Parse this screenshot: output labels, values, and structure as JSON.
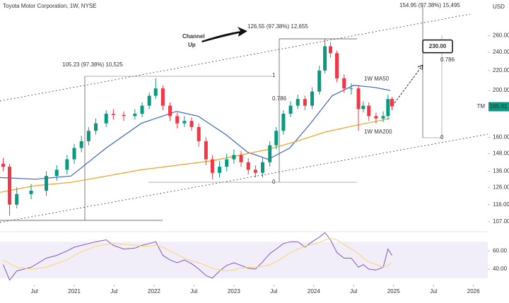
{
  "chart_data": [
    {
      "type": "candlestick",
      "title": "Toyota Motor Corporation, 1W, NYSE",
      "currency": "USD",
      "symbol": "TM",
      "last_price": 185.41,
      "log_scale": true,
      "grid": false,
      "up_color": "#089981",
      "down_color": "#f23645",
      "xlim": [
        2020.07,
        2026.18
      ],
      "xticks": [
        {
          "value": 2020.5,
          "label": "Jul"
        },
        2021,
        {
          "value": 2021.5,
          "label": "Jul"
        },
        2022,
        {
          "value": 2022.5,
          "label": "Jul"
        },
        2023,
        {
          "value": 2023.5,
          "label": "Jul"
        },
        2024,
        {
          "value": 2024.5,
          "label": "Jul"
        },
        2025,
        {
          "value": 2025.5,
          "label": "Jul"
        },
        2026
      ],
      "ylim": [
        103,
        308
      ],
      "yticks": [
        {
          "value": 107,
          "label": "107.00"
        },
        {
          "value": 116,
          "label": "116.00"
        },
        {
          "value": 126,
          "label": "126.00"
        },
        {
          "value": 136,
          "label": "136.00"
        },
        {
          "value": 148,
          "label": "148.00"
        },
        {
          "value": 160,
          "label": "160.00"
        },
        {
          "value": 200,
          "label": "200.00"
        },
        {
          "value": 220,
          "label": "220.00"
        },
        {
          "value": 240,
          "label": "240.00"
        },
        {
          "value": 260,
          "label": "260.00"
        }
      ],
      "x": [
        2020.11,
        2020.19,
        2020.28,
        2020.46,
        2020.65,
        2020.78,
        2020.91,
        2021.0,
        2021.09,
        2021.18,
        2021.27,
        2021.4,
        2021.49,
        2021.62,
        2021.76,
        2021.85,
        2021.94,
        2022.02,
        2022.11,
        2022.2,
        2022.29,
        2022.38,
        2022.47,
        2022.56,
        2022.65,
        2022.73,
        2022.82,
        2022.91,
        2023.0,
        2023.09,
        2023.18,
        2023.27,
        2023.36,
        2023.45,
        2023.53,
        2023.62,
        2023.71,
        2023.8,
        2023.89,
        2023.98,
        2024.07,
        2024.14,
        2024.21,
        2024.29,
        2024.38,
        2024.47,
        2024.56,
        2024.62,
        2024.69,
        2024.78,
        2024.87,
        2024.93,
        2024.98
      ],
      "open": [
        141,
        139,
        116,
        122,
        124,
        133,
        137,
        144,
        152,
        157,
        165,
        171,
        179,
        178,
        177,
        179,
        186,
        195,
        202,
        186,
        177,
        171,
        173,
        168,
        157,
        144,
        135,
        139,
        144,
        147,
        142,
        137,
        135,
        142,
        154,
        165,
        179,
        186,
        192,
        186,
        199,
        220,
        247,
        239,
        212,
        202,
        202,
        183,
        186,
        177,
        175,
        177,
        192
      ],
      "high": [
        145,
        141,
        126,
        128,
        136,
        140,
        147,
        155,
        161,
        168,
        175,
        182,
        183,
        181,
        183,
        189,
        198,
        212,
        205,
        189,
        180,
        177,
        176,
        171,
        160,
        147,
        143,
        148,
        151,
        150,
        145,
        140,
        145,
        157,
        168,
        182,
        190,
        196,
        195,
        203,
        225,
        256,
        252,
        242,
        216,
        207,
        205,
        190,
        189,
        180,
        181,
        196,
        194
      ],
      "low": [
        136,
        110,
        114,
        119,
        121,
        130,
        134,
        141,
        149,
        154,
        162,
        168,
        174,
        173,
        174,
        176,
        183,
        192,
        182,
        173,
        167,
        168,
        165,
        153,
        140,
        131,
        132,
        136,
        141,
        139,
        134,
        132,
        132,
        139,
        151,
        162,
        176,
        183,
        182,
        183,
        196,
        217,
        234,
        208,
        198,
        196,
        165,
        180,
        173,
        171,
        172,
        174,
        182
      ],
      "close": [
        139,
        116,
        122,
        124,
        133,
        137,
        144,
        152,
        157,
        165,
        171,
        179,
        178,
        177,
        179,
        186,
        195,
        202,
        186,
        177,
        171,
        173,
        168,
        157,
        144,
        135,
        139,
        144,
        147,
        142,
        137,
        135,
        142,
        154,
        165,
        179,
        186,
        192,
        186,
        199,
        220,
        247,
        239,
        212,
        202,
        202,
        183,
        186,
        177,
        175,
        177,
        192,
        185.41
      ],
      "series": [
        {
          "name": "1W MA50",
          "color": "#3f62c8",
          "x": [
            2020.07,
            2020.51,
            2020.96,
            2021.4,
            2021.84,
            2022.28,
            2022.55,
            2022.9,
            2023.17,
            2023.43,
            2023.7,
            2023.96,
            2024.23,
            2024.5,
            2024.76,
            2024.96
          ],
          "values": [
            132,
            131,
            133,
            152,
            171,
            181,
            177,
            162,
            149,
            144,
            152,
            171,
            195,
            205,
            203,
            200
          ]
        },
        {
          "name": "1W MA200",
          "color": "#f0a020",
          "x": [
            2020.07,
            2020.51,
            2020.96,
            2021.84,
            2022.73,
            2023.43,
            2023.79,
            2024.14,
            2024.5,
            2024.96
          ],
          "values": [
            123,
            127,
            129,
            137,
            143,
            151,
            157,
            164,
            169,
            175
          ]
        }
      ],
      "annotations": [
        "Channel",
        "Up",
        "105.23 (97.38%) 10,525",
        "126.55 (97.38%) 12,655",
        "154.95 (97.38%) 15,495"
      ],
      "fib_labels": [
        1,
        0.786,
        0,
        0.786,
        0
      ],
      "target": {
        "value": 230,
        "label": "230.00"
      }
    },
    {
      "type": "line",
      "ylim": [
        23,
        81
      ],
      "yticks": [
        {
          "value": 40,
          "label": "40.00"
        },
        {
          "value": 60,
          "label": "60.00"
        }
      ],
      "band": [
        30,
        70
      ],
      "band_color": "#7e57c2",
      "xlim": [
        2020.07,
        2026.18
      ],
      "x": [
        2020.11,
        2020.19,
        2020.28,
        2020.46,
        2020.65,
        2020.78,
        2020.91,
        2021.0,
        2021.09,
        2021.18,
        2021.27,
        2021.4,
        2021.49,
        2021.62,
        2021.76,
        2021.85,
        2021.94,
        2022.02,
        2022.11,
        2022.2,
        2022.29,
        2022.38,
        2022.47,
        2022.56,
        2022.65,
        2022.73,
        2022.82,
        2022.91,
        2023.0,
        2023.09,
        2023.18,
        2023.27,
        2023.36,
        2023.45,
        2023.53,
        2023.62,
        2023.71,
        2023.8,
        2023.89,
        2023.98,
        2024.07,
        2024.14,
        2024.21,
        2024.29,
        2024.38,
        2024.47,
        2024.56,
        2024.62,
        2024.69,
        2024.78,
        2024.87,
        2024.93,
        2024.98
      ],
      "series": [
        {
          "color": "#7e57c2",
          "values": [
            45,
            28,
            38,
            42,
            52,
            55,
            60,
            64,
            66,
            68,
            70,
            72,
            66,
            62,
            63,
            66,
            68,
            70,
            55,
            50,
            47,
            50,
            46,
            40,
            33,
            30,
            38,
            44,
            47,
            44,
            41,
            40,
            48,
            57,
            62,
            68,
            70,
            70,
            64,
            70,
            75,
            80,
            72,
            58,
            52,
            52,
            42,
            45,
            40,
            39,
            42,
            62,
            55
          ]
        },
        {
          "color": "#f5d76e",
          "values": [
            50,
            46,
            42,
            40,
            42,
            46,
            50,
            55,
            59,
            62,
            65,
            67,
            68,
            67,
            66,
            65,
            65,
            66,
            64,
            60,
            56,
            52,
            49,
            47,
            44,
            41,
            39,
            38,
            39,
            41,
            42,
            42,
            43,
            45,
            48,
            53,
            58,
            62,
            65,
            67,
            69,
            72,
            74,
            72,
            67,
            62,
            57,
            52,
            48,
            45,
            42,
            44,
            47
          ]
        }
      ]
    }
  ]
}
